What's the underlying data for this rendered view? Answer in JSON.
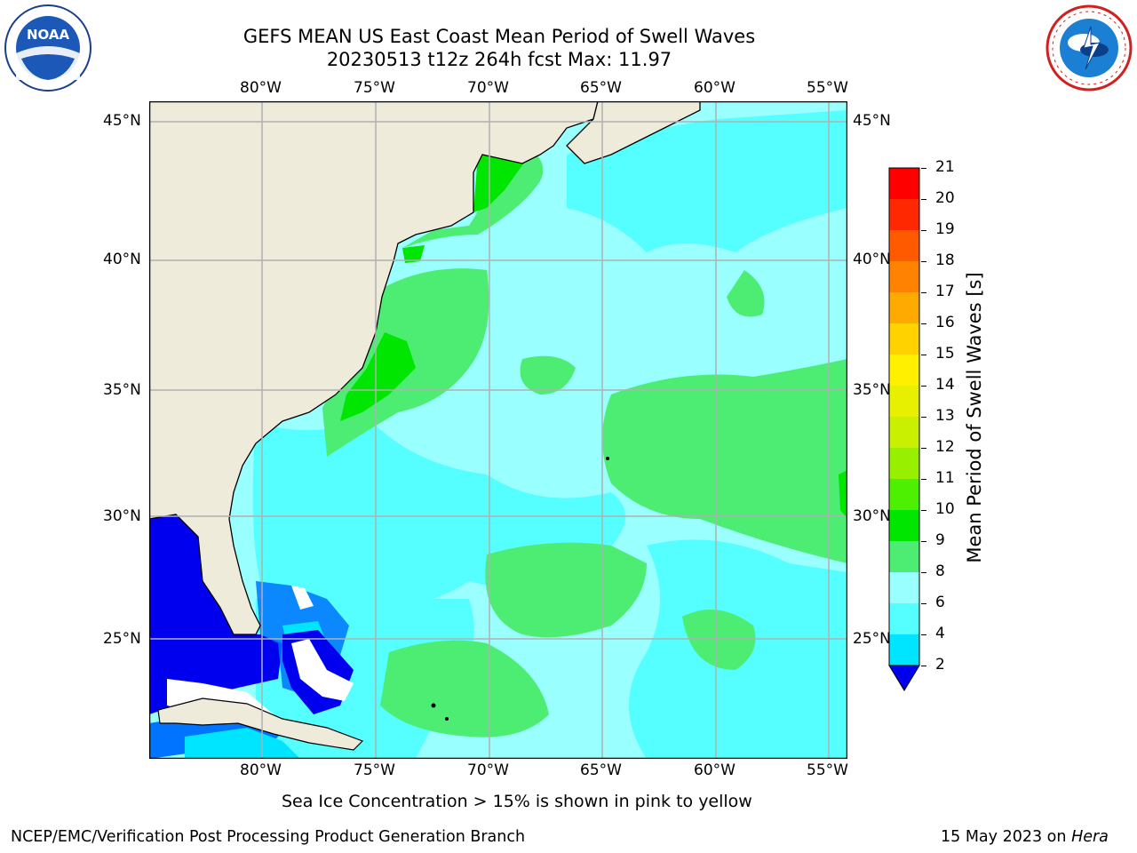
{
  "header": {
    "title": "GEFS MEAN US East Coast Mean Period of Swell Waves",
    "subtitle": "20230513 t12z 264h fcst   Max: 11.97"
  },
  "logos": {
    "left": {
      "text": "NOAA",
      "ring_text": "NATIONAL OCEANIC AND ATMOSPHERIC ADMINISTRATION · U.S. DEPARTMENT OF COMMERCE"
    },
    "right": {
      "ring_text": "NATIONAL WEATHER SERVICE"
    }
  },
  "map": {
    "lon_labels": [
      "80°W",
      "75°W",
      "70°W",
      "65°W",
      "60°W",
      "55°W"
    ],
    "lat_labels": [
      "45°N",
      "40°N",
      "35°N",
      "30°N",
      "25°N"
    ],
    "colors": {
      "land": "#eeebdb",
      "grid": "#b0b0b0",
      "no_data": "#ffffff"
    }
  },
  "colorbar": {
    "title": "Mean Period of Swell Waves [s]",
    "levels": [
      "2",
      "4",
      "6",
      "8",
      "9",
      "10",
      "11",
      "12",
      "13",
      "14",
      "15",
      "16",
      "17",
      "18",
      "19",
      "20",
      "21"
    ],
    "colors": [
      "#0000ee",
      "#0073ff",
      "#00e5ff",
      "#55ffff",
      "#99ffff",
      "#4ded74",
      "#00e600",
      "#4cf000",
      "#98f000",
      "#c8f000",
      "#e6f000",
      "#fff000",
      "#ffd200",
      "#ffaa00",
      "#ff8200",
      "#ff5a00",
      "#ff2800",
      "#ff0000"
    ]
  },
  "footer": {
    "note": "Sea Ice Concentration > 15% is shown in pink to yellow",
    "credit": "NCEP/EMC/Verification Post Processing Product Generation Branch",
    "date": "15 May 2023 on",
    "host": "Hera"
  }
}
